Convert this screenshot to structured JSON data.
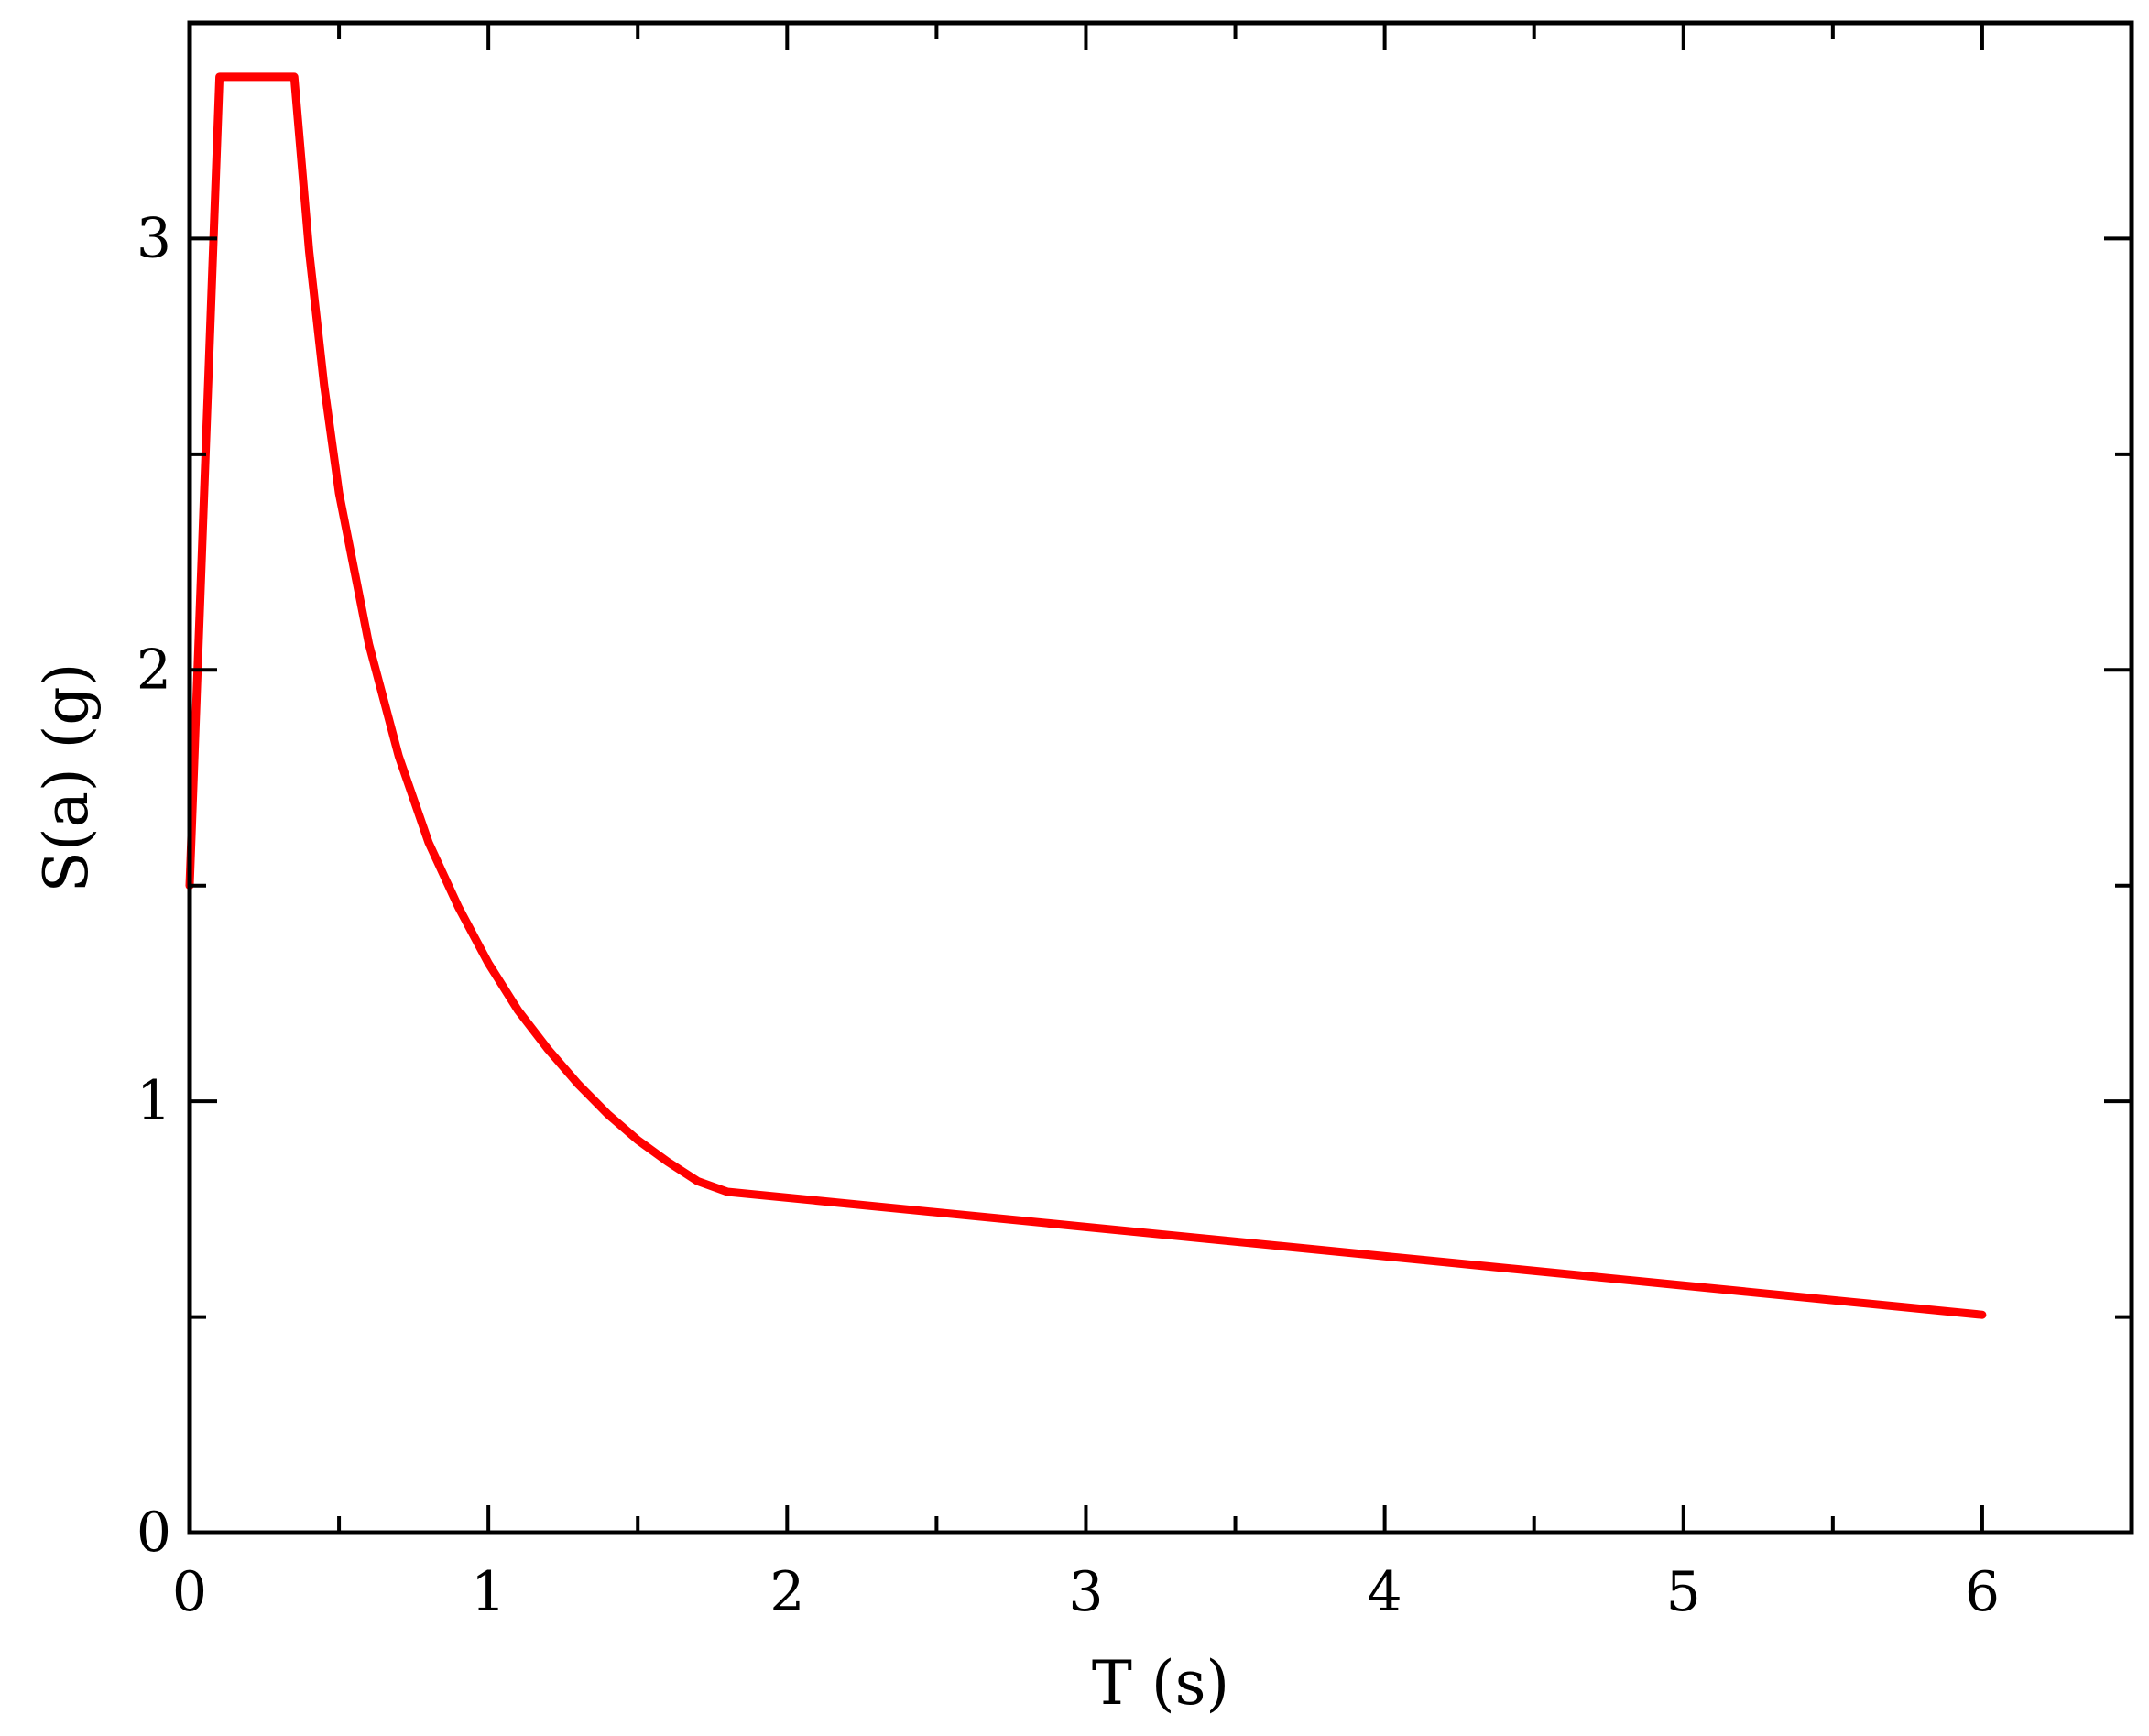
{
  "chart_data": {
    "type": "line",
    "title": "",
    "xlabel": "T (s)",
    "ylabel": "S(a) (g)",
    "xlim": [
      0,
      6.5
    ],
    "ylim": [
      0,
      3.5
    ],
    "xticks": [
      0,
      1,
      2,
      3,
      4,
      5,
      6
    ],
    "xtick_labels": [
      "0",
      "1",
      "2",
      "3",
      "4",
      "5",
      "6"
    ],
    "x_minor_ticks": [
      0.5,
      1.5,
      2.5,
      3.5,
      4.5,
      5.5
    ],
    "yticks": [
      0,
      1,
      2,
      3
    ],
    "ytick_labels": [
      "0",
      "1",
      "2",
      "3"
    ],
    "y_minor_ticks": [
      0.5,
      1.5,
      2.5
    ],
    "grid": false,
    "line_color": "#ff0000",
    "series": [
      {
        "x": [
          0,
          0.1,
          0.35,
          0.4,
          0.45,
          0.5,
          0.6,
          0.7,
          0.8,
          0.9,
          1.0,
          1.1,
          1.2,
          1.3,
          1.4,
          1.5,
          1.6,
          1.7,
          1.8,
          6.0
        ],
        "values": [
          1.5,
          3.375,
          3.375,
          2.97,
          2.66,
          2.41,
          2.06,
          1.8,
          1.6,
          1.45,
          1.32,
          1.21,
          1.12,
          1.04,
          0.97,
          0.91,
          0.86,
          0.815,
          0.79,
          0.505
        ]
      }
    ]
  }
}
